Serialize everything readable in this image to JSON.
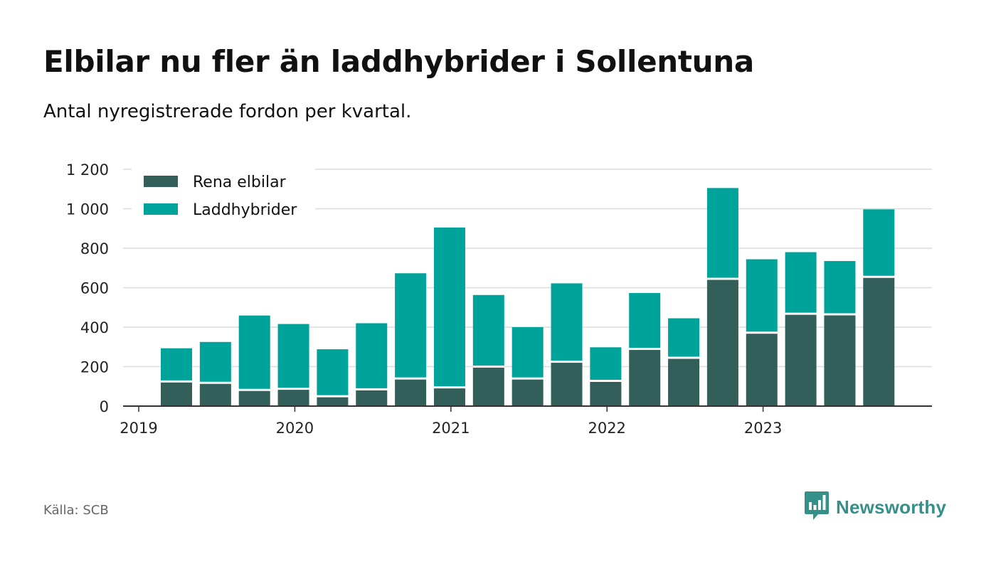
{
  "title": "Elbilar nu fler än laddhybrider i Sollentuna",
  "subtitle": "Antal nyregistrerade fordon per kvartal.",
  "source": "Källa: SCB",
  "brand": "Newsworthy",
  "colors": {
    "elbilar": "#335f5b",
    "laddhybrider": "#00a39a",
    "grid": "#dcdcdc",
    "axis": "#333333",
    "brand": "#35908a"
  },
  "chart_data": {
    "type": "bar",
    "stacked": true,
    "title": "Elbilar nu fler än laddhybrider i Sollentuna",
    "ylabel": "",
    "xlabel": "",
    "ylim": [
      0,
      1200
    ],
    "yticks": [
      0,
      200,
      400,
      600,
      800,
      1000,
      1200
    ],
    "ytick_labels": [
      "0",
      "200",
      "400",
      "600",
      "800",
      "1 000",
      "1 200"
    ],
    "xtick_labels": [
      "2019",
      "2020",
      "2021",
      "2022",
      "2023"
    ],
    "legend_position": "top-left",
    "grid": true,
    "categories": [
      "2019 Q2",
      "2019 Q3",
      "2019 Q4",
      "2020 Q1",
      "2020 Q2",
      "2020 Q3",
      "2020 Q4",
      "2021 Q1",
      "2021 Q2",
      "2021 Q3",
      "2021 Q4",
      "2022 Q1",
      "2022 Q2",
      "2022 Q3",
      "2022 Q4",
      "2023 Q1",
      "2023 Q2",
      "2023 Q3",
      "2023 Q4"
    ],
    "series": [
      {
        "name": "Rena elbilar",
        "color": "#335f5b",
        "values": [
          125,
          118,
          82,
          88,
          50,
          85,
          140,
          95,
          200,
          140,
          225,
          128,
          290,
          245,
          645,
          372,
          468,
          465,
          655
        ]
      },
      {
        "name": "Laddhybrider",
        "color": "#00a39a",
        "values": [
          168,
          207,
          377,
          328,
          238,
          335,
          533,
          810,
          363,
          260,
          397,
          170,
          283,
          200,
          460,
          372,
          312,
          270,
          342
        ]
      }
    ]
  }
}
